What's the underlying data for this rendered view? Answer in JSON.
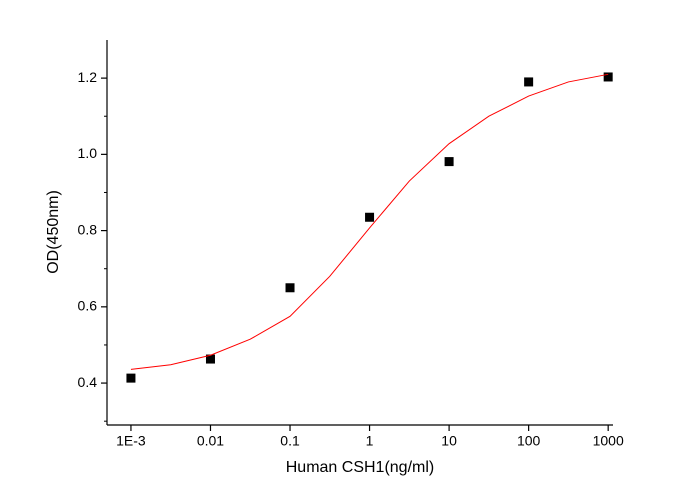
{
  "chart_data": {
    "type": "scatter",
    "xlabel": "Human CSH1(ng/ml)",
    "ylabel": "OD(450nm)",
    "xscale": "log",
    "x": [
      0.001,
      0.01,
      0.1,
      1,
      10,
      100,
      1000
    ],
    "series": [
      {
        "type": "scatter",
        "color": "#000000",
        "x": [
          0.001,
          0.01,
          0.1,
          1,
          10,
          100,
          1000
        ],
        "values": [
          0.413,
          0.463,
          0.65,
          0.835,
          0.981,
          1.19,
          1.203
        ]
      },
      {
        "type": "line",
        "color": "#ff0000",
        "x": [
          0.001,
          0.00316,
          0.01,
          0.0316,
          0.1,
          0.316,
          1,
          3.16,
          10,
          31.6,
          100,
          316,
          1000
        ],
        "values": [
          0.436,
          0.448,
          0.473,
          0.515,
          0.575,
          0.68,
          0.807,
          0.93,
          1.028,
          1.1,
          1.153,
          1.19,
          1.21
        ]
      }
    ],
    "xlim": [
      0.0005,
      1150
    ],
    "ylim": [
      0.29,
      1.3
    ],
    "xticks": [
      {
        "value": 0.001,
        "label": "1E-3"
      },
      0.01,
      0.1,
      1,
      10,
      100,
      1000
    ],
    "yticks": [
      0.4,
      0.6,
      0.8,
      {
        "value": 1,
        "label": "1.0"
      },
      1.2
    ],
    "yminorticks": [
      0.3,
      0.5,
      0.7,
      0.9,
      1.1
    ]
  }
}
